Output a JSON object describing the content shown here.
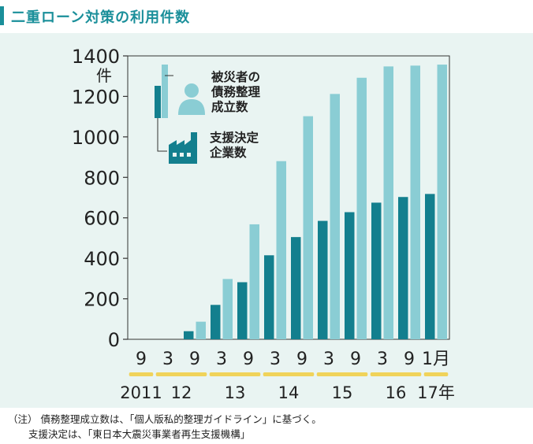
{
  "title": "二重ローン対策の利用件数",
  "colors": {
    "title": "#1a8f9a",
    "panel_bg": "#e9f4f2",
    "dark_bar": "#137f8e",
    "light_bar": "#8acdd4",
    "year_underline": "#f0d35a"
  },
  "chart_data": {
    "type": "bar",
    "y_unit": "件",
    "ylim": [
      0,
      1400
    ],
    "yticks": [
      0,
      200,
      400,
      600,
      800,
      1000,
      1200,
      1400
    ],
    "categories": [
      "9",
      "3",
      "9",
      "3",
      "9",
      "3",
      "9",
      "3",
      "9",
      "3",
      "9",
      "1月"
    ],
    "year_labels": [
      {
        "label": "2011",
        "from": 0,
        "to": 0
      },
      {
        "label": "12",
        "from": 1,
        "to": 2
      },
      {
        "label": "13",
        "from": 3,
        "to": 4
      },
      {
        "label": "14",
        "from": 5,
        "to": 6
      },
      {
        "label": "15",
        "from": 7,
        "to": 8
      },
      {
        "label": "16",
        "from": 9,
        "to": 10
      },
      {
        "label": "17年",
        "from": 11,
        "to": 11
      }
    ],
    "series": [
      {
        "name": "支援決定企業数",
        "values": [
          0,
          0,
          40,
          170,
          282,
          415,
          505,
          585,
          628,
          675,
          703,
          718
        ]
      },
      {
        "name": "被災者の債務整理成立数",
        "values": [
          0,
          0,
          87,
          298,
          568,
          880,
          1102,
          1212,
          1292,
          1348,
          1352,
          1357
        ]
      }
    ],
    "legend": [
      {
        "series": 1,
        "lines": [
          "被災者の",
          "債務整理",
          "成立数"
        ],
        "icon": "person-icon"
      },
      {
        "series": 0,
        "lines": [
          "支援決定",
          "企業数"
        ],
        "icon": "factory-icon"
      }
    ],
    "legend_position": "top-left"
  },
  "footnotes": {
    "label": "（注）",
    "line1": "債務整理成立数は、「個人版私的整理ガイドライン」に基づく。",
    "line2": "支援決定は、「東日本大震災事業者再生支援機構」"
  }
}
